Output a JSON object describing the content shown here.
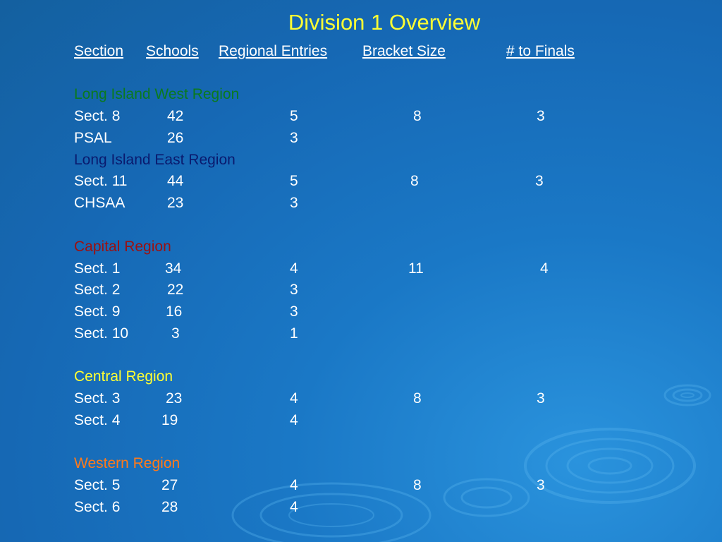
{
  "slide": {
    "title": "Division 1 Overview",
    "headers": {
      "section": "Section",
      "schools": "Schools",
      "regional_entries": "Regional Entries",
      "bracket_size": "Bracket Size",
      "to_finals": "# to Finals"
    },
    "regions": {
      "li_west": {
        "name": "Long Island West Region",
        "color": "#0a7a1e",
        "rows": [
          {
            "section": "Sect. 8",
            "schools": "42",
            "entries": "5",
            "bracket": "8",
            "finals": "3"
          },
          {
            "section": "PSAL",
            "schools": "26",
            "entries": "3",
            "bracket": "",
            "finals": ""
          }
        ]
      },
      "li_east": {
        "name": "Long Island East Region",
        "color": "#0a1a6e",
        "rows": [
          {
            "section": "Sect. 11",
            "schools": "44",
            "entries": "5",
            "bracket": "8",
            "finals": "3"
          },
          {
            "section": "CHSAA",
            "schools": "23",
            "entries": "3",
            "bracket": "",
            "finals": ""
          }
        ]
      },
      "capital": {
        "name": "Capital Region",
        "color": "#9c1010",
        "rows": [
          {
            "section": "Sect. 1",
            "schools": "34",
            "entries": "4",
            "bracket": "11",
            "finals": "4"
          },
          {
            "section": "Sect. 2",
            "schools": "22",
            "entries": "3",
            "bracket": "",
            "finals": ""
          },
          {
            "section": "Sect. 9",
            "schools": "16",
            "entries": "3",
            "bracket": "",
            "finals": ""
          },
          {
            "section": "Sect. 10",
            "schools": "3",
            "entries": "1",
            "bracket": "",
            "finals": ""
          }
        ]
      },
      "central": {
        "name": "Central Region",
        "color": "#ffff33",
        "rows": [
          {
            "section": "Sect. 3",
            "schools": "23",
            "entries": "4",
            "bracket": "8",
            "finals": "3"
          },
          {
            "section": "Sect. 4",
            "schools": "19",
            "entries": "4",
            "bracket": "",
            "finals": ""
          }
        ]
      },
      "western": {
        "name": "Western Region",
        "color": "#ff7a1a",
        "rows": [
          {
            "section": "Sect. 5",
            "schools": "27",
            "entries": "4",
            "bracket": "8",
            "finals": "3"
          },
          {
            "section": "Sect. 6",
            "schools": "28",
            "entries": "4",
            "bracket": "",
            "finals": ""
          }
        ]
      }
    }
  }
}
